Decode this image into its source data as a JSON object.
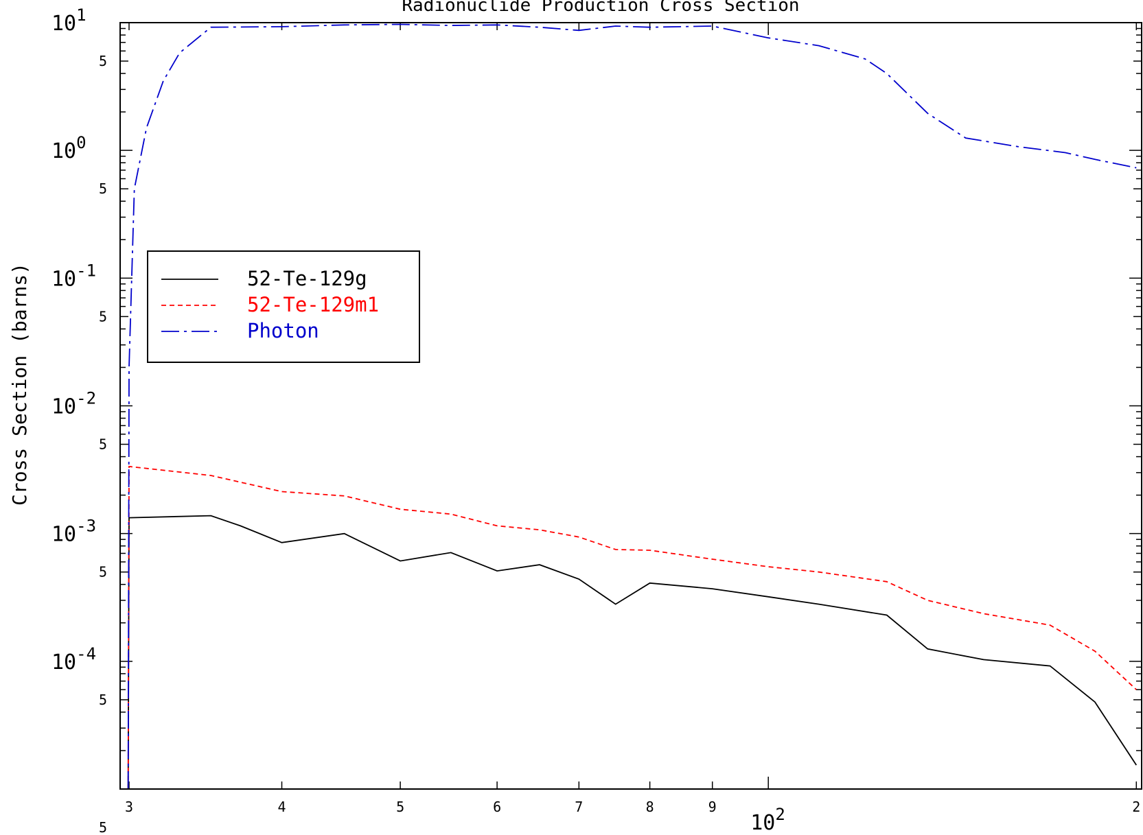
{
  "colors": {
    "black": "#000000",
    "red": "#ff0000",
    "blue": "#0000cc"
  },
  "chart_data": {
    "type": "line",
    "title": "Radionuclide Production Cross Section",
    "xlabel": "",
    "ylabel": "Cross Section (barns)",
    "xscale": "log",
    "yscale": "log",
    "xlim": [
      29.5,
      202
    ],
    "ylim": [
      1e-05,
      10
    ],
    "grid": false,
    "legend_position": "left",
    "x_tick_labels": [
      {
        "value": 30,
        "label": "3"
      },
      {
        "value": 40,
        "label": "4"
      },
      {
        "value": 50,
        "label": "5"
      },
      {
        "value": 60,
        "label": "6"
      },
      {
        "value": 70,
        "label": "7"
      },
      {
        "value": 80,
        "label": "8"
      },
      {
        "value": 90,
        "label": "9"
      },
      {
        "value": 200,
        "label": "2"
      }
    ],
    "x_decade_label": {
      "base": "10",
      "exp": "2",
      "value": 100
    },
    "y_decade_labels": [
      {
        "value": 10,
        "base": "10",
        "exp": "1"
      },
      {
        "value": 1,
        "base": "10",
        "exp": "0"
      },
      {
        "value": 0.1,
        "base": "10",
        "exp": "-1"
      },
      {
        "value": 0.01,
        "base": "10",
        "exp": "-2"
      },
      {
        "value": 0.001,
        "base": "10",
        "exp": "-3"
      },
      {
        "value": 0.0001,
        "base": "10",
        "exp": "-4"
      }
    ],
    "y_minor_labels": [
      {
        "value": 5,
        "label": "5"
      },
      {
        "value": 0.5,
        "label": "5"
      },
      {
        "value": 0.05,
        "label": "5"
      },
      {
        "value": 0.005,
        "label": "5"
      },
      {
        "value": 0.0005,
        "label": "5"
      },
      {
        "value": 5e-05,
        "label": "5"
      },
      {
        "value": 5e-06,
        "label": "5"
      }
    ],
    "series": [
      {
        "name": "52-Te-129g",
        "color": "#000000",
        "dash": "solid",
        "x": [
          29.95,
          30,
          35,
          37,
          40,
          45,
          50,
          55,
          60,
          65,
          70,
          75,
          80,
          90,
          100,
          110,
          125,
          135,
          150,
          170,
          185,
          200
        ],
        "y": [
          1e-05,
          0.00133,
          0.00138,
          0.00115,
          0.00085,
          0.001,
          0.00061,
          0.00071,
          0.00051,
          0.00057,
          0.00044,
          0.00028,
          0.00041,
          0.00037,
          0.00032,
          0.00028,
          0.00023,
          0.000125,
          0.000103,
          9.2e-05,
          4.8e-05,
          1.54e-05
        ]
      },
      {
        "name": "52-Te-129m1",
        "color": "#ff0000",
        "dash": "dashed",
        "x": [
          29.95,
          30,
          35,
          40,
          45,
          50,
          55,
          60,
          65,
          70,
          75,
          80,
          90,
          100,
          110,
          125,
          135,
          150,
          170,
          185,
          200
        ],
        "y": [
          1e-05,
          0.00335,
          0.00285,
          0.00213,
          0.00197,
          0.00155,
          0.00142,
          0.00115,
          0.00107,
          0.00094,
          0.00075,
          0.00074,
          0.00063,
          0.00055,
          0.0005,
          0.00042,
          0.0003,
          0.000236,
          0.000192,
          0.00012,
          6e-05
        ]
      },
      {
        "name": "Photon",
        "color": "#0000cc",
        "dash": "dashdot",
        "x": [
          29.95,
          30,
          30.3,
          31,
          32,
          33,
          35,
          40,
          45,
          50,
          55,
          60,
          65,
          70,
          75,
          80,
          90,
          100,
          110,
          120,
          125,
          135,
          145,
          160,
          175,
          185,
          200
        ],
        "y": [
          1e-05,
          0.02,
          0.5,
          1.5,
          3.5,
          5.8,
          9.2,
          9.3,
          9.6,
          9.7,
          9.5,
          9.6,
          9.2,
          8.7,
          9.4,
          9.2,
          9.4,
          7.6,
          6.6,
          5.2,
          4.0,
          1.95,
          1.25,
          1.07,
          0.96,
          0.85,
          0.73
        ]
      }
    ]
  }
}
